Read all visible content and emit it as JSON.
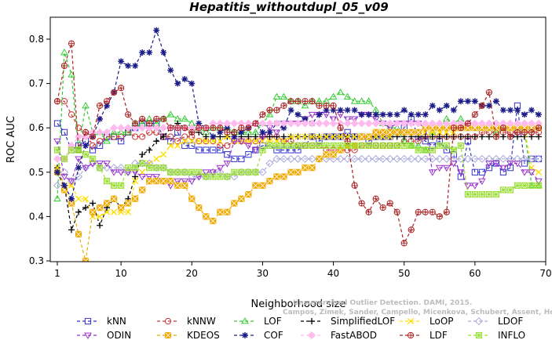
{
  "chart_data": {
    "type": "line",
    "title": "Hepatitis_withoutdupl_05_v09",
    "xlabel": "Neighborhood size",
    "ylabel": "ROC AUC",
    "xlim": [
      0,
      70
    ],
    "ylim": [
      0.3,
      0.85
    ],
    "xticks": [
      "10",
      "20",
      "30",
      "40",
      "50",
      "60",
      "70"
    ],
    "xticks_extra": [
      "1"
    ],
    "yticks": [
      "0.3",
      "0.4",
      "0.5",
      "0.6",
      "0.7",
      "0.8"
    ],
    "grid": false,
    "legend_position": "bottom",
    "x": [
      1,
      2,
      3,
      4,
      5,
      6,
      7,
      8,
      9,
      10,
      11,
      12,
      13,
      14,
      15,
      16,
      17,
      18,
      19,
      20,
      21,
      22,
      23,
      24,
      25,
      26,
      27,
      28,
      29,
      30,
      31,
      32,
      33,
      34,
      35,
      36,
      37,
      38,
      39,
      40,
      41,
      42,
      43,
      44,
      45,
      46,
      47,
      48,
      49,
      50,
      51,
      52,
      53,
      54,
      55,
      56,
      57,
      58,
      59,
      60,
      61,
      62,
      63,
      64,
      65,
      66,
      67,
      68,
      69
    ],
    "series": [
      {
        "name": "kNN",
        "color": "#3333cc",
        "marker": "square",
        "values": [
          0.61,
          0.59,
          0.55,
          0.56,
          0.57,
          0.55,
          0.56,
          0.58,
          0.58,
          0.57,
          0.59,
          0.6,
          0.61,
          0.61,
          0.61,
          0.58,
          0.57,
          0.59,
          0.56,
          0.56,
          0.55,
          0.55,
          0.55,
          0.55,
          0.54,
          0.53,
          0.53,
          0.54,
          0.55,
          0.56,
          0.56,
          0.55,
          0.55,
          0.55,
          0.55,
          0.56,
          0.58,
          0.57,
          0.58,
          0.58,
          0.58,
          0.59,
          0.58,
          0.58,
          0.57,
          0.58,
          0.58,
          0.58,
          0.59,
          0.6,
          0.62,
          0.58,
          0.57,
          0.56,
          0.57,
          0.55,
          0.54,
          0.49,
          0.57,
          0.5,
          0.5,
          0.51,
          0.52,
          0.5,
          0.51,
          0.65,
          0.52,
          0.53,
          0.53
        ]
      },
      {
        "name": "kNNW",
        "color": "#cc3333",
        "marker": "circle",
        "values": [
          0.66,
          0.66,
          0.63,
          0.6,
          0.59,
          0.56,
          0.57,
          0.58,
          0.58,
          0.58,
          0.59,
          0.58,
          0.58,
          0.59,
          0.59,
          0.58,
          0.58,
          0.57,
          0.58,
          0.58,
          0.57,
          0.57,
          0.57,
          0.56,
          0.56,
          0.57,
          0.57,
          0.57,
          0.57,
          0.58,
          0.58,
          0.58,
          0.57,
          0.57,
          0.56,
          0.56,
          0.56,
          0.56,
          0.55,
          0.55,
          0.55,
          0.55,
          0.55,
          0.56,
          0.56,
          0.56,
          0.56,
          0.56,
          0.56,
          0.57,
          0.57,
          0.57,
          0.58,
          0.58,
          0.58,
          0.58,
          0.58,
          0.58,
          0.58,
          0.58,
          0.59,
          0.59,
          0.59,
          0.59,
          0.59,
          0.59,
          0.59,
          0.59,
          0.59
        ]
      },
      {
        "name": "LOF",
        "color": "#33cc33",
        "marker": "triangle",
        "values": [
          0.44,
          0.77,
          0.72,
          0.55,
          0.65,
          0.59,
          0.59,
          0.57,
          0.59,
          0.59,
          0.59,
          0.61,
          0.61,
          0.62,
          0.61,
          0.62,
          0.63,
          0.62,
          0.62,
          0.61,
          0.6,
          0.59,
          0.6,
          0.6,
          0.6,
          0.59,
          0.59,
          0.59,
          0.59,
          0.61,
          0.63,
          0.67,
          0.67,
          0.66,
          0.66,
          0.65,
          0.66,
          0.66,
          0.66,
          0.67,
          0.68,
          0.67,
          0.66,
          0.66,
          0.66,
          0.64,
          0.61,
          0.6,
          0.6,
          0.57,
          0.56,
          0.56,
          0.55,
          0.59,
          0.6,
          0.62,
          0.61,
          0.62,
          0.6,
          0.6,
          0.6,
          0.6,
          0.59,
          0.6,
          0.6,
          0.6,
          0.6,
          0.47,
          0.47
        ]
      },
      {
        "name": "SimplifiedLOF",
        "color": "#000000",
        "marker": "plus",
        "values": [
          0.51,
          0.47,
          0.37,
          0.41,
          0.42,
          0.43,
          0.38,
          0.42,
          0.44,
          0.42,
          0.44,
          0.49,
          0.54,
          0.55,
          0.57,
          0.58,
          0.6,
          0.61,
          0.6,
          0.59,
          0.59,
          0.58,
          0.58,
          0.58,
          0.58,
          0.58,
          0.58,
          0.58,
          0.58,
          0.58,
          0.58,
          0.58,
          0.58,
          0.58,
          0.58,
          0.58,
          0.58,
          0.58,
          0.58,
          0.58,
          0.58,
          0.58,
          0.58,
          0.58,
          0.58,
          0.58,
          0.58,
          0.58,
          0.58,
          0.58,
          0.58,
          0.58,
          0.58,
          0.58,
          0.58,
          0.58,
          0.58,
          0.58,
          0.58,
          0.58,
          0.58,
          0.58,
          0.58,
          0.58,
          0.58,
          0.58,
          0.58,
          0.58,
          0.58
        ]
      },
      {
        "name": "LoOP",
        "color": "#ffdd00",
        "marker": "cross",
        "values": [
          0.51,
          0.47,
          0.47,
          0.44,
          0.44,
          0.4,
          0.4,
          0.41,
          0.41,
          0.41,
          0.41,
          0.48,
          0.5,
          0.52,
          0.53,
          0.54,
          0.56,
          0.56,
          0.57,
          0.57,
          0.57,
          0.57,
          0.57,
          0.57,
          0.58,
          0.57,
          0.57,
          0.57,
          0.57,
          0.57,
          0.57,
          0.57,
          0.57,
          0.58,
          0.58,
          0.58,
          0.58,
          0.58,
          0.58,
          0.58,
          0.58,
          0.58,
          0.58,
          0.58,
          0.58,
          0.58,
          0.58,
          0.58,
          0.59,
          0.59,
          0.59,
          0.59,
          0.59,
          0.59,
          0.59,
          0.59,
          0.59,
          0.6,
          0.6,
          0.6,
          0.6,
          0.6,
          0.6,
          0.6,
          0.6,
          0.6,
          0.6,
          0.51,
          0.5
        ]
      },
      {
        "name": "LDOF",
        "color": "#aaaadd",
        "marker": "diamond",
        "values": [
          0.47,
          0.5,
          0.48,
          0.49,
          0.51,
          0.52,
          0.51,
          0.51,
          0.51,
          0.51,
          0.5,
          0.52,
          0.52,
          0.52,
          0.51,
          0.51,
          0.5,
          0.5,
          0.5,
          0.49,
          0.49,
          0.49,
          0.5,
          0.5,
          0.49,
          0.49,
          0.5,
          0.5,
          0.5,
          0.5,
          0.52,
          0.53,
          0.53,
          0.53,
          0.53,
          0.53,
          0.53,
          0.53,
          0.53,
          0.53,
          0.53,
          0.53,
          0.53,
          0.53,
          0.53,
          0.53,
          0.53,
          0.53,
          0.53,
          0.53,
          0.53,
          0.53,
          0.53,
          0.53,
          0.53,
          0.53,
          0.53,
          0.53,
          0.53,
          0.53,
          0.53,
          0.53,
          0.53,
          0.53,
          0.53,
          0.53,
          0.53,
          0.53,
          0.53
        ]
      },
      {
        "name": "ODIN",
        "color": "#9933cc",
        "marker": "triangle-down",
        "values": [
          0.57,
          0.49,
          0.48,
          0.53,
          0.51,
          0.52,
          0.52,
          0.52,
          0.5,
          0.5,
          0.5,
          0.5,
          0.49,
          0.49,
          0.49,
          0.48,
          0.47,
          0.48,
          0.48,
          0.48,
          0.49,
          0.5,
          0.5,
          0.51,
          0.52,
          0.57,
          0.57,
          0.56,
          0.55,
          0.58,
          0.6,
          0.59,
          0.61,
          0.61,
          0.61,
          0.62,
          0.63,
          0.63,
          0.63,
          0.62,
          0.63,
          0.62,
          0.62,
          0.63,
          0.63,
          0.62,
          0.61,
          0.6,
          0.61,
          0.61,
          0.61,
          0.61,
          0.6,
          0.5,
          0.51,
          0.51,
          0.52,
          0.5,
          0.47,
          0.47,
          0.48,
          0.52,
          0.52,
          0.51,
          0.52,
          0.52,
          0.5,
          0.5,
          0.48
        ]
      },
      {
        "name": "KDEOS",
        "color": "#eeaa00",
        "marker": "square-filled",
        "values": [
          0.5,
          0.46,
          0.43,
          0.36,
          0.3,
          0.41,
          0.42,
          0.43,
          0.44,
          0.42,
          0.43,
          0.44,
          0.46,
          0.48,
          0.48,
          0.48,
          0.48,
          0.47,
          0.47,
          0.44,
          0.42,
          0.4,
          0.39,
          0.41,
          0.41,
          0.43,
          0.44,
          0.45,
          0.47,
          0.47,
          0.48,
          0.49,
          0.49,
          0.5,
          0.5,
          0.51,
          0.51,
          0.53,
          0.54,
          0.54,
          0.55,
          0.56,
          0.56,
          0.58,
          0.58,
          0.59,
          0.59,
          0.59,
          0.59,
          0.59,
          0.59,
          0.59,
          0.6,
          0.6,
          0.6,
          0.6,
          0.6,
          0.6,
          0.6,
          0.6,
          0.6,
          0.6,
          0.6,
          0.6,
          0.6,
          0.6,
          0.6,
          0.6,
          0.6
        ]
      },
      {
        "name": "COF",
        "color": "#1a1a88",
        "marker": "star",
        "values": [
          0.5,
          0.47,
          0.44,
          0.51,
          0.56,
          0.58,
          0.62,
          0.65,
          0.68,
          0.75,
          0.74,
          0.74,
          0.77,
          0.77,
          0.82,
          0.77,
          0.73,
          0.7,
          0.71,
          0.7,
          0.61,
          0.6,
          0.58,
          0.59,
          0.6,
          0.58,
          0.59,
          0.6,
          0.61,
          0.59,
          0.59,
          0.61,
          0.6,
          0.64,
          0.63,
          0.62,
          0.61,
          0.63,
          0.64,
          0.64,
          0.64,
          0.64,
          0.64,
          0.63,
          0.63,
          0.63,
          0.63,
          0.63,
          0.63,
          0.64,
          0.63,
          0.63,
          0.63,
          0.65,
          0.64,
          0.65,
          0.64,
          0.66,
          0.66,
          0.66,
          0.65,
          0.65,
          0.66,
          0.64,
          0.64,
          0.64,
          0.63,
          0.64,
          0.63
        ]
      },
      {
        "name": "FastABOD",
        "color": "#ffbbee",
        "marker": "diamond-filled",
        "values": [
          0.53,
          0.53,
          0.56,
          0.58,
          0.58,
          0.59,
          0.59,
          0.59,
          0.6,
          0.6,
          0.6,
          0.6,
          0.6,
          0.6,
          0.6,
          0.6,
          0.6,
          0.6,
          0.6,
          0.6,
          0.6,
          0.6,
          0.61,
          0.61,
          0.61,
          0.61,
          0.61,
          0.61,
          0.61,
          0.61,
          0.61,
          0.61,
          0.61,
          0.61,
          0.61,
          0.61,
          0.61,
          0.61,
          0.61,
          0.61,
          0.61,
          0.61,
          0.61,
          0.61,
          0.61,
          0.61,
          0.61,
          0.61,
          0.61,
          0.61,
          0.61,
          0.61,
          0.61,
          0.61,
          0.61,
          0.61,
          0.61,
          0.61,
          0.61,
          0.61,
          0.61,
          0.61,
          0.61,
          0.61,
          0.61,
          0.61,
          0.61,
          0.61,
          0.61
        ]
      },
      {
        "name": "LDF",
        "color": "#aa2222",
        "marker": "circle-plus",
        "values": [
          0.66,
          0.74,
          0.79,
          0.55,
          0.59,
          0.58,
          0.65,
          0.66,
          0.68,
          0.69,
          0.63,
          0.61,
          0.62,
          0.61,
          0.62,
          0.62,
          0.6,
          0.6,
          0.6,
          0.59,
          0.6,
          0.6,
          0.6,
          0.6,
          0.59,
          0.59,
          0.6,
          0.6,
          0.61,
          0.63,
          0.64,
          0.64,
          0.65,
          0.66,
          0.66,
          0.66,
          0.66,
          0.65,
          0.65,
          0.65,
          0.6,
          0.57,
          0.47,
          0.43,
          0.41,
          0.44,
          0.42,
          0.43,
          0.41,
          0.34,
          0.37,
          0.41,
          0.41,
          0.41,
          0.4,
          0.41,
          0.6,
          0.6,
          0.61,
          0.63,
          0.65,
          0.68,
          0.58,
          0.6,
          0.58,
          0.59,
          0.59,
          0.59,
          0.6
        ]
      },
      {
        "name": "INFLO",
        "color": "#99dd33",
        "marker": "star-box",
        "values": [
          0.55,
          0.53,
          0.55,
          0.55,
          0.54,
          0.53,
          0.51,
          0.48,
          0.47,
          0.47,
          0.51,
          0.51,
          0.52,
          0.51,
          0.51,
          0.51,
          0.5,
          0.5,
          0.5,
          0.5,
          0.5,
          0.49,
          0.49,
          0.49,
          0.49,
          0.5,
          0.5,
          0.5,
          0.5,
          0.55,
          0.56,
          0.56,
          0.56,
          0.56,
          0.56,
          0.56,
          0.56,
          0.56,
          0.56,
          0.56,
          0.56,
          0.56,
          0.56,
          0.56,
          0.56,
          0.56,
          0.56,
          0.56,
          0.56,
          0.56,
          0.56,
          0.55,
          0.55,
          0.55,
          0.56,
          0.56,
          0.55,
          0.56,
          0.45,
          0.45,
          0.45,
          0.45,
          0.45,
          0.46,
          0.46,
          0.47,
          0.47,
          0.47,
          0.47
        ]
      }
    ]
  },
  "watermark": {
    "line1": "Unsupervised Outlier Detection. DAMI, 2015.",
    "line2": "Campos, Zimek, Sander, Campello, Micenkova, Schubert, Assent, Houle"
  }
}
